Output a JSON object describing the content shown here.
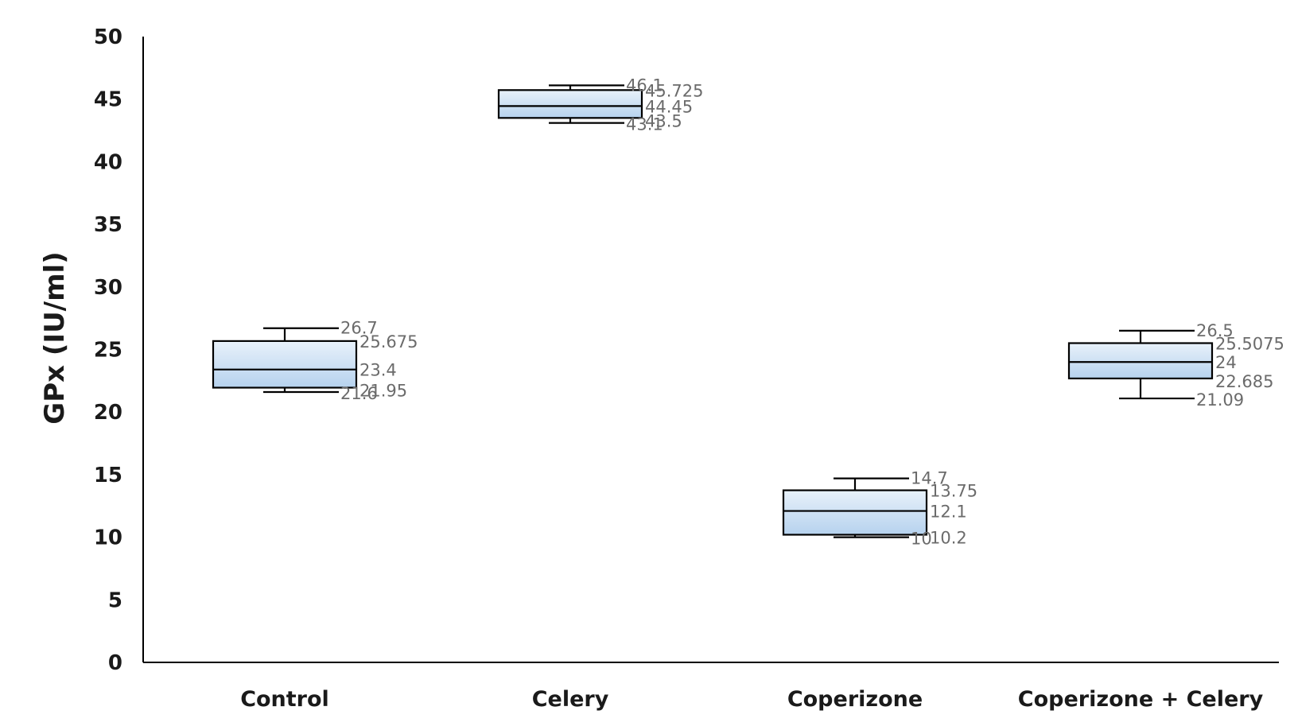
{
  "chart_data": {
    "type": "box",
    "ylabel": "GPx (IU/ml)",
    "xlabel": "",
    "title": "",
    "ylim": [
      0,
      50
    ],
    "yticks": [
      0,
      5,
      10,
      15,
      20,
      25,
      30,
      35,
      40,
      45,
      50
    ],
    "grid": false,
    "legend": "none",
    "box_fill_top": "#e8f1fa",
    "box_fill_bottom": "#b6d2ee",
    "categories": [
      "Control",
      "Celery",
      "Coperizone",
      "Coperizone + Celery"
    ],
    "boxes": [
      {
        "category": "Control",
        "min": 21.6,
        "q1": 21.95,
        "median": 23.4,
        "q3": 25.675,
        "max": 26.7,
        "labels": {
          "min": "21.6",
          "q1": "21.95",
          "median": "23.4",
          "q3": "25.675",
          "max": "26.7"
        }
      },
      {
        "category": "Celery",
        "min": 43.1,
        "q1": 43.5,
        "median": 44.45,
        "q3": 45.725,
        "max": 46.1,
        "labels": {
          "min": "43.1",
          "q1": "43.5",
          "median": "44.45",
          "q3": "45.725",
          "max": "46.1"
        }
      },
      {
        "category": "Coperizone",
        "min": 10,
        "q1": 10.2,
        "median": 12.1,
        "q3": 13.75,
        "max": 14.7,
        "labels": {
          "min": "10",
          "q1": "10.2",
          "median": "12.1",
          "q3": "13.75",
          "max": "14.7"
        }
      },
      {
        "category": "Coperizone + Celery",
        "min": 21.09,
        "q1": 22.685,
        "median": 24,
        "q3": 25.5075,
        "max": 26.5,
        "labels": {
          "min": "21.09",
          "q1": "22.685",
          "median": "24",
          "q3": "25.5075",
          "max": "26.5"
        }
      }
    ]
  }
}
